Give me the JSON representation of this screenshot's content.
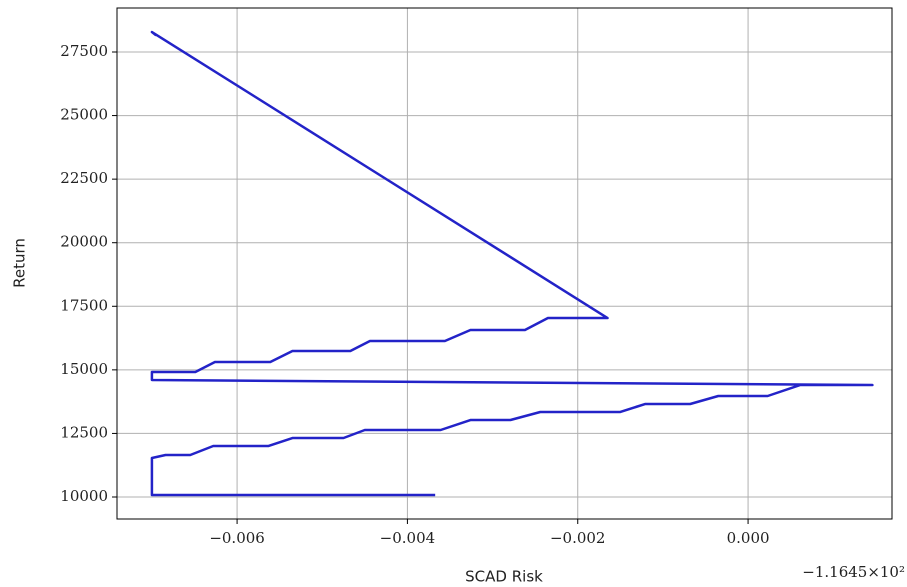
{
  "chart_data": {
    "type": "line",
    "x_label": "SCAD Risk",
    "y_label": "Return",
    "x_offset_label": "−1.1645×10²",
    "x": [
      -0.003674,
      -0.007,
      -0.007,
      -0.00684,
      -0.00655,
      -0.00628,
      -0.00563,
      -0.00535,
      -0.00506,
      -0.00475,
      -0.0045,
      -0.00361,
      -0.00326,
      -0.00279,
      -0.00244,
      -0.0015,
      -0.00121,
      -0.00068,
      -0.00035,
      0.00023,
      0.00061,
      0.00146,
      -0.007,
      -0.007,
      -0.00649,
      -0.00626,
      -0.00561,
      -0.00535,
      -0.00467,
      -0.00444,
      -0.00356,
      -0.00326,
      -0.00262,
      -0.00235,
      -0.00165,
      -0.007,
      -0.00695
    ],
    "series": [
      {
        "name": "Return",
        "color": "#2323c8",
        "values": [
          10080,
          10080,
          11534,
          11652,
          11652,
          12006,
          12006,
          12320,
          12320,
          12320,
          12635,
          12635,
          13028,
          13028,
          13343,
          13343,
          13657,
          13657,
          13972,
          13972,
          14404,
          14404,
          14601,
          14915,
          14915,
          15309,
          15309,
          15741,
          15741,
          16134,
          16134,
          16567,
          16567,
          17039,
          17039,
          28286,
          28150
        ]
      }
    ],
    "xlim": [
      -0.00741,
      0.00169
    ],
    "ylim": [
      9135,
      29230
    ],
    "xticks": [
      {
        "value": -0.006,
        "label": "−0.006"
      },
      {
        "value": -0.004,
        "label": "−0.004"
      },
      {
        "value": -0.002,
        "label": "−0.002"
      },
      {
        "value": 0,
        "label": "0.000"
      }
    ],
    "yticks": [
      10000,
      12500,
      15000,
      17500,
      20000,
      22500,
      25000,
      27500
    ],
    "grid": true
  }
}
